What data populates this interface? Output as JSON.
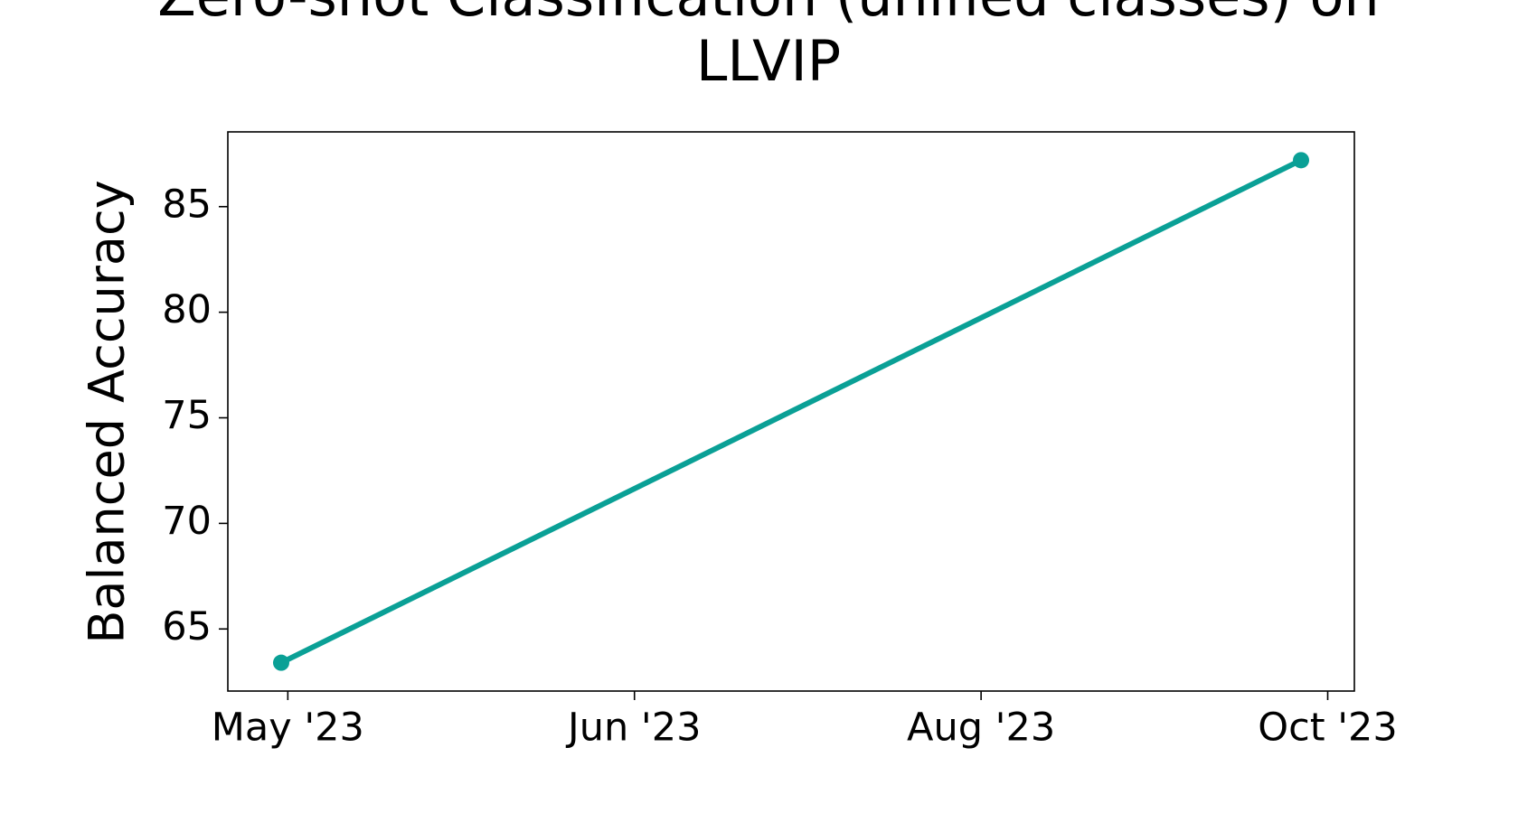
{
  "chart_data": {
    "type": "line",
    "title": "Zero-shot Classification (unified classes) on LLVIP",
    "y_label": "Balanced Accuracy",
    "x": [
      "2023-04-30",
      "2023-09-30"
    ],
    "series": [
      {
        "color": "#0aa096",
        "values": [
          63.4,
          87.2
        ]
      }
    ],
    "xlim": [
      "2023-04-22",
      "2023-10-08"
    ],
    "xticks": [
      {
        "value": "2023-05-01",
        "label": "May '23"
      },
      {
        "value": "2023-06-22",
        "label": "Jun '23"
      },
      {
        "value": "2023-08-13",
        "label": "Aug '23"
      },
      {
        "value": "2023-10-04",
        "label": "Oct '23"
      }
    ],
    "ylim": [
      62.06,
      88.54
    ],
    "yticks": [
      65,
      70,
      75,
      80,
      85
    ],
    "grid": false
  }
}
